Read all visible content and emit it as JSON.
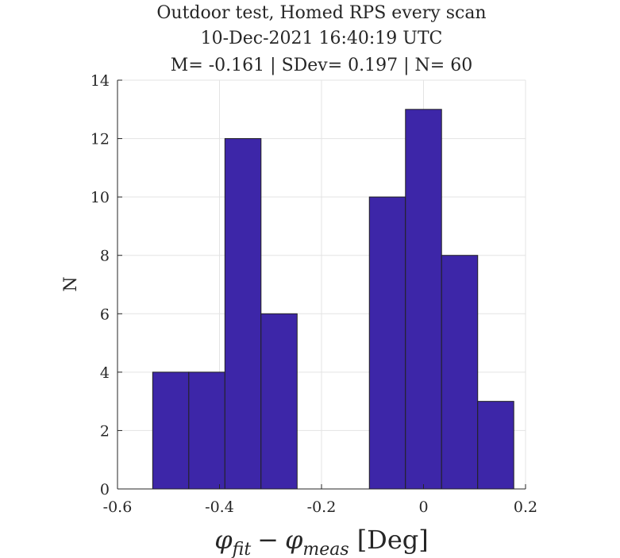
{
  "chart_data": {
    "type": "bar",
    "title_lines": [
      "Outdoor test, Homed RPS every scan",
      "10-Dec-2021 16:40:19 UTC",
      "M= -0.161 | SDev= 0.197 | N= 60"
    ],
    "xlabel": "φfit − φmeas [Deg]",
    "xlabel_parts": {
      "phi1": "φ",
      "sub1": "fit",
      "minus": "−",
      "phi2": "φ",
      "sub2": "meas",
      "unit": "[Deg]"
    },
    "ylabel": "N",
    "xlim": [
      -0.6,
      0.2
    ],
    "ylim": [
      0,
      14
    ],
    "xticks": [
      -0.6,
      -0.4,
      -0.2,
      0,
      0.2
    ],
    "xtick_labels": [
      "-0.6",
      "-0.4",
      "-0.2",
      "0",
      "0.2"
    ],
    "yticks": [
      0,
      2,
      4,
      6,
      8,
      10,
      12,
      14
    ],
    "ytick_labels": [
      "0",
      "2",
      "4",
      "6",
      "8",
      "10",
      "12",
      "14"
    ],
    "grid": true,
    "bar_color": "#3d26a8",
    "bin_edges": [
      -0.531,
      -0.4602,
      -0.3894,
      -0.3186,
      -0.2478,
      -0.177,
      -0.1062,
      -0.0354,
      0.0354,
      0.1062,
      0.177
    ],
    "bins": [
      {
        "x0": -0.531,
        "x1": -0.4602,
        "count": 4
      },
      {
        "x0": -0.4602,
        "x1": -0.3894,
        "count": 4
      },
      {
        "x0": -0.3894,
        "x1": -0.3186,
        "count": 12
      },
      {
        "x0": -0.3186,
        "x1": -0.2478,
        "count": 6
      },
      {
        "x0": -0.2478,
        "x1": -0.177,
        "count": 0
      },
      {
        "x0": -0.177,
        "x1": -0.1062,
        "count": 0
      },
      {
        "x0": -0.1062,
        "x1": -0.0354,
        "count": 10
      },
      {
        "x0": -0.0354,
        "x1": 0.0354,
        "count": 13
      },
      {
        "x0": 0.0354,
        "x1": 0.1062,
        "count": 8
      },
      {
        "x0": 0.1062,
        "x1": 0.177,
        "count": 3
      }
    ]
  }
}
